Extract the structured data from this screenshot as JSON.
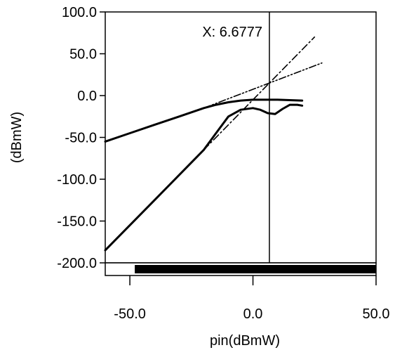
{
  "chart_data": {
    "type": "line",
    "xlabel": "pin(dBmW)",
    "ylabel": "(dBmW)",
    "xlim": [
      -60,
      50
    ],
    "ylim": [
      -200,
      100
    ],
    "x_ticks": [
      -50.0,
      0.0,
      50.0
    ],
    "x_tick_labels": [
      "-50.0",
      "0.0",
      "50.0"
    ],
    "y_ticks": [
      100,
      50,
      0,
      -50,
      -100,
      -150,
      -200
    ],
    "y_tick_labels": [
      "100.0",
      "50.0",
      "0.0",
      "-50.0",
      "-100.0",
      "-150.0",
      "-200.0"
    ],
    "grid": false,
    "marker": {
      "x": 6.6777,
      "label": "X: 6.6777"
    },
    "range_bar": {
      "start": -48,
      "end": 50
    },
    "series": [
      {
        "style": "solid",
        "x": [
          -60,
          -50,
          -40,
          -30,
          -20,
          -15,
          -10,
          -5,
          0,
          5,
          10,
          15,
          20
        ],
        "y": [
          -55,
          -45,
          -35,
          -25,
          -15,
          -11,
          -8,
          -6,
          -5,
          -5,
          -5,
          -5.5,
          -6
        ]
      },
      {
        "style": "solid",
        "x": [
          -60,
          -50,
          -40,
          -30,
          -20,
          -15,
          -10,
          -5,
          0,
          3,
          6,
          9,
          12,
          15,
          18,
          20
        ],
        "y": [
          -185,
          -155,
          -125,
          -95,
          -65,
          -45,
          -25,
          -17,
          -15,
          -17,
          -21,
          -22,
          -16,
          -11,
          -11,
          -12
        ]
      },
      {
        "style": "dashdot",
        "x": [
          -20,
          25
        ],
        "y": [
          -65,
          70
        ]
      },
      {
        "style": "dashdotdot",
        "x": [
          -20,
          28
        ],
        "y": [
          -15,
          39
        ]
      }
    ]
  }
}
